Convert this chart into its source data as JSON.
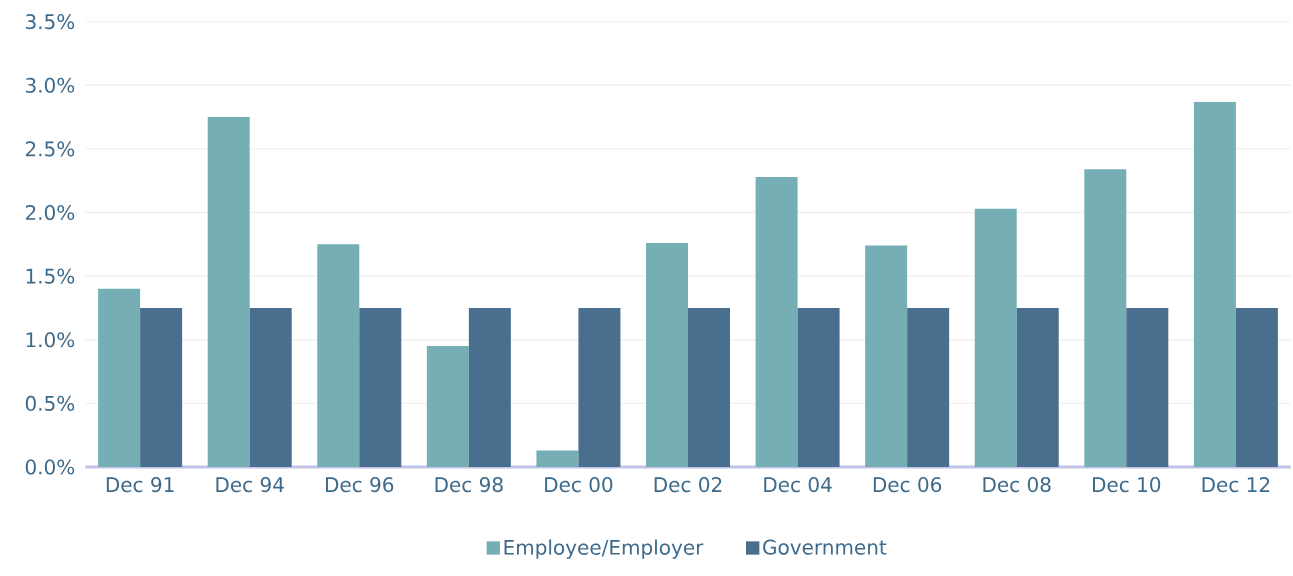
{
  "chart_data": {
    "type": "bar",
    "categories": [
      "Dec 91",
      "Dec 94",
      "Dec 96",
      "Dec 98",
      "Dec 00",
      "Dec 02",
      "Dec 04",
      "Dec 06",
      "Dec 08",
      "Dec 10",
      "Dec 12"
    ],
    "series": [
      {
        "name": "Employee/Employer",
        "color": "#75afb5",
        "values": [
          1.4,
          2.75,
          1.75,
          0.95,
          0.13,
          1.76,
          2.28,
          1.74,
          2.03,
          2.34,
          2.87
        ]
      },
      {
        "name": "Government",
        "color": "#4a6f8e",
        "values": [
          1.25,
          1.25,
          1.25,
          1.25,
          1.25,
          1.25,
          1.25,
          1.25,
          1.25,
          1.25,
          1.25
        ]
      }
    ],
    "ylim": [
      0,
      3.5
    ],
    "yticks": [
      {
        "value": 0,
        "label": "0.0%"
      },
      {
        "value": 0.5,
        "label": "0.5%"
      },
      {
        "value": 1.0,
        "label": "1.0%"
      },
      {
        "value": 1.5,
        "label": "1.5%"
      },
      {
        "value": 2.0,
        "label": "2.0%"
      },
      {
        "value": 2.5,
        "label": "2.5%"
      },
      {
        "value": 3.0,
        "label": "3.0%"
      },
      {
        "value": 3.5,
        "label": "3.5%"
      }
    ],
    "grid": "y",
    "legend": "bottom"
  }
}
